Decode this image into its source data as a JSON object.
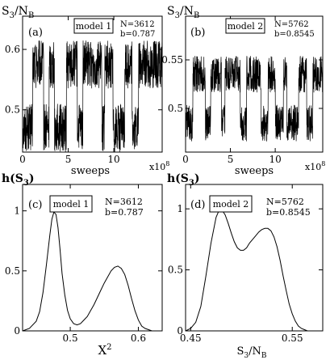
{
  "chart_data": [
    {
      "id": "a",
      "type": "line",
      "panel_label": "(a)",
      "model_label": "model 1",
      "annotation": [
        "N=3612",
        "b=0.787"
      ],
      "ylabel": "S3/NB",
      "xlabel": "sweeps",
      "x_multiplier": "x10^8",
      "xlim": [
        0,
        15.3
      ],
      "ylim": [
        0.43,
        0.655
      ],
      "xticks": [
        0,
        5,
        10
      ],
      "yticks": [
        0.5,
        0.6
      ],
      "states": [
        0.47,
        0.575
      ],
      "segments": [
        [
          0,
          1.1,
          0
        ],
        [
          1.1,
          2.3,
          1
        ],
        [
          2.3,
          2.9,
          0
        ],
        [
          2.9,
          3.5,
          1
        ],
        [
          3.5,
          4.8,
          0
        ],
        [
          4.8,
          6.0,
          1
        ],
        [
          6.0,
          6.6,
          0
        ],
        [
          6.6,
          8.7,
          1
        ],
        [
          8.7,
          9.0,
          0
        ],
        [
          9.0,
          9.9,
          1
        ],
        [
          9.9,
          11.2,
          0
        ],
        [
          11.2,
          12.0,
          1
        ],
        [
          12.0,
          12.7,
          0
        ],
        [
          12.7,
          15.3,
          1
        ]
      ]
    },
    {
      "id": "b",
      "type": "line",
      "panel_label": "(b)",
      "model_label": "model 2",
      "annotation": [
        "N=5762",
        "b=0.8545"
      ],
      "ylabel": "S3/NB",
      "xlabel": "sweeps",
      "x_multiplier": "x10^8",
      "xlim": [
        0,
        15.3
      ],
      "ylim": [
        0.455,
        0.595
      ],
      "xticks": [
        0,
        5,
        10
      ],
      "yticks": [
        0.5,
        0.55
      ],
      "states": [
        0.485,
        0.535
      ],
      "segments": [
        [
          0,
          0.8,
          0
        ],
        [
          0.8,
          2.2,
          1
        ],
        [
          2.2,
          2.8,
          0
        ],
        [
          2.8,
          4.0,
          1
        ],
        [
          4.0,
          4.4,
          0
        ],
        [
          4.4,
          6.1,
          1
        ],
        [
          6.1,
          6.8,
          0
        ],
        [
          6.8,
          8.4,
          1
        ],
        [
          8.4,
          9.2,
          0
        ],
        [
          9.2,
          10.0,
          1
        ],
        [
          10.0,
          10.9,
          0
        ],
        [
          10.9,
          11.3,
          1
        ],
        [
          11.3,
          12.6,
          0
        ],
        [
          12.6,
          13.5,
          1
        ],
        [
          13.5,
          14.2,
          0
        ],
        [
          14.2,
          15.3,
          1
        ]
      ]
    },
    {
      "id": "c",
      "type": "line",
      "panel_label": "(c)",
      "model_label": "model 1",
      "annotation": [
        "N=3612",
        "b=0.787"
      ],
      "ylabel": "h(S3)",
      "xlabel": "X^2",
      "xlim": [
        0.43,
        0.635
      ],
      "ylim": [
        0,
        1.22
      ],
      "xticks": [
        0.5,
        0.6
      ],
      "yticks": [
        0,
        0.5,
        1
      ],
      "x": [
        0.43,
        0.44,
        0.45,
        0.455,
        0.46,
        0.465,
        0.47,
        0.473,
        0.476,
        0.479,
        0.482,
        0.485,
        0.488,
        0.492,
        0.496,
        0.5,
        0.505,
        0.51,
        0.515,
        0.52,
        0.525,
        0.53,
        0.535,
        0.54,
        0.545,
        0.55,
        0.555,
        0.56,
        0.565,
        0.57,
        0.575,
        0.58,
        0.585,
        0.59,
        0.595,
        0.6,
        0.605,
        0.61,
        0.615,
        0.62,
        0.63,
        0.635
      ],
      "y": [
        0.0,
        0.02,
        0.08,
        0.16,
        0.32,
        0.55,
        0.8,
        0.93,
        0.99,
        0.97,
        0.86,
        0.68,
        0.48,
        0.3,
        0.17,
        0.1,
        0.06,
        0.05,
        0.06,
        0.09,
        0.12,
        0.17,
        0.22,
        0.28,
        0.34,
        0.4,
        0.45,
        0.5,
        0.53,
        0.54,
        0.52,
        0.47,
        0.38,
        0.27,
        0.17,
        0.09,
        0.04,
        0.02,
        0.01,
        0.0,
        0.0,
        0.0
      ]
    },
    {
      "id": "d",
      "type": "line",
      "panel_label": "(d)",
      "model_label": "model 2",
      "annotation": [
        "N=5762",
        "b=0.8545"
      ],
      "ylabel": "h(S3)",
      "xlabel": "S3/NB",
      "xlim": [
        0.445,
        0.58
      ],
      "ylim": [
        0,
        1.2
      ],
      "xticks": [
        0.45,
        0.55
      ],
      "yticks": [
        0,
        0.5,
        1
      ],
      "x": [
        0.445,
        0.45,
        0.455,
        0.46,
        0.465,
        0.47,
        0.475,
        0.478,
        0.481,
        0.484,
        0.487,
        0.49,
        0.493,
        0.496,
        0.499,
        0.502,
        0.505,
        0.508,
        0.511,
        0.514,
        0.517,
        0.52,
        0.523,
        0.526,
        0.529,
        0.532,
        0.535,
        0.538,
        0.541,
        0.544,
        0.547,
        0.55,
        0.553,
        0.556,
        0.559,
        0.562,
        0.565,
        0.57,
        0.575,
        0.58
      ],
      "y": [
        0.0,
        0.02,
        0.07,
        0.2,
        0.45,
        0.72,
        0.93,
        0.99,
        0.99,
        0.95,
        0.88,
        0.8,
        0.73,
        0.68,
        0.66,
        0.66,
        0.68,
        0.72,
        0.75,
        0.78,
        0.81,
        0.83,
        0.84,
        0.84,
        0.82,
        0.77,
        0.69,
        0.58,
        0.45,
        0.33,
        0.22,
        0.14,
        0.08,
        0.04,
        0.02,
        0.01,
        0.0,
        0.0,
        0.0,
        0.0
      ]
    }
  ]
}
